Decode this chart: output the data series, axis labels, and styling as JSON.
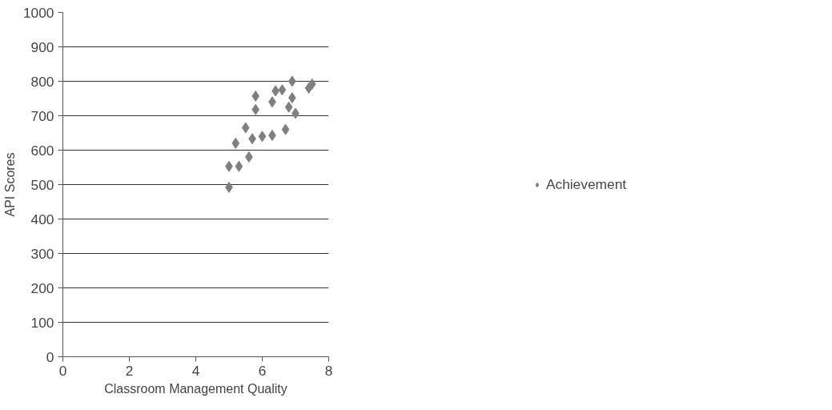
{
  "chart_data": {
    "type": "scatter",
    "xlabel": "Classroom Management Quality",
    "ylabel": "API Scores",
    "xlim": [
      0,
      8
    ],
    "xticks": [
      0,
      2,
      4,
      6,
      8
    ],
    "ylim": [
      0,
      1000
    ],
    "yticks": [
      0,
      100,
      200,
      300,
      400,
      500,
      600,
      700,
      800,
      900,
      1000
    ],
    "grid": "y",
    "legend": "right",
    "marker": "diamond",
    "series": [
      {
        "name": "Achievement",
        "color": "#7f7f7f",
        "x": [
          5,
          5,
          5.2,
          5.3,
          5.5,
          5.6,
          5.7,
          5.8,
          5.8,
          6,
          6.3,
          6.3,
          6.4,
          6.6,
          6.7,
          6.8,
          6.9,
          6.9,
          7,
          7.4,
          7.5
        ],
        "values": [
          553,
          492,
          620,
          553,
          665,
          580,
          633,
          757,
          718,
          640,
          740,
          643,
          772,
          775,
          660,
          725,
          800,
          752,
          707,
          780,
          792
        ]
      }
    ]
  }
}
